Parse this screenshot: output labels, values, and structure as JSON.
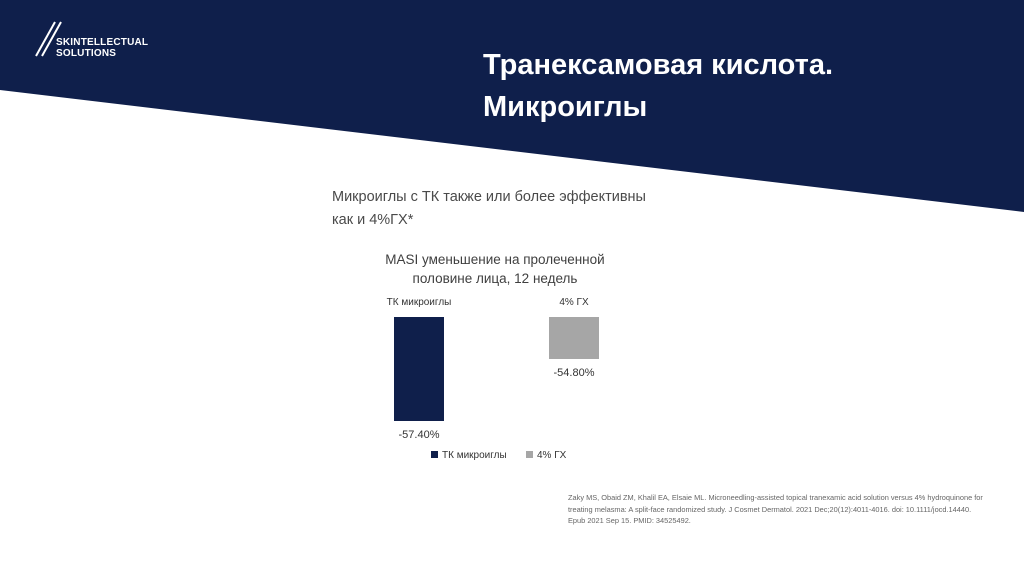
{
  "logo": {
    "line1": "SKINTELLECTUAL",
    "line2": "SOLUTIONS"
  },
  "title": {
    "line1": "Транексамовая кислота.",
    "line2": "Микроиглы"
  },
  "subtitle": {
    "line1": "Микроиглы с ТК также или более эффективны",
    "line2": "как и  4%ГХ*"
  },
  "colors": {
    "navy": "#0f1f4b",
    "gray": "#a6a6a6",
    "white": "#ffffff"
  },
  "chart_data": {
    "type": "bar",
    "title_line1": "MASI уменьшение на пролеченной",
    "title_line2": "половине лица, 12 недель",
    "categories": [
      "ТК микроиглы",
      "4% ГХ"
    ],
    "values": [
      -57.4,
      -54.8
    ],
    "data_labels": [
      "-57.40%",
      "-54.80%"
    ],
    "colors": [
      "#0f1f4b",
      "#a6a6a6"
    ],
    "legend": [
      {
        "name": "ТК микроиглы",
        "color": "#0f1f4b"
      },
      {
        "name": "4% ГХ",
        "color": "#a6a6a6"
      }
    ],
    "legend_position": "bottom",
    "grid": false
  },
  "citation": "Zaky MS, Obaid ZM, Khalil EA, Elsaie ML. Microneedling-assisted topical tranexamic acid solution versus 4% hydroquinone for treating melasma: A split-face randomized study. J Cosmet Dermatol. 2021 Dec;20(12):4011-4016. doi: 10.1111/jocd.14440. Epub 2021 Sep 15. PMID: 34525492."
}
